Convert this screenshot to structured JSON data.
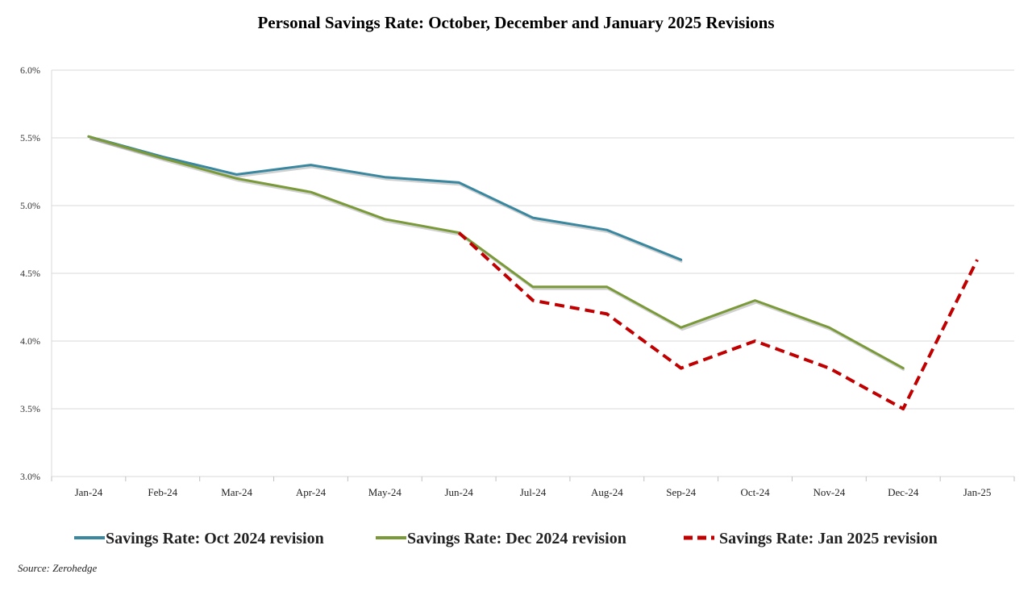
{
  "chart_data": {
    "type": "line",
    "title": "Personal Savings Rate: October, December and January 2025 Revisions",
    "categories": [
      "Jan-24",
      "Feb-24",
      "Mar-24",
      "Apr-24",
      "May-24",
      "Jun-24",
      "Jul-24",
      "Aug-24",
      "Sep-24",
      "Oct-24",
      "Nov-24",
      "Dec-24",
      "Jan-25"
    ],
    "yticks": [
      "3.0%",
      "3.5%",
      "4.0%",
      "4.5%",
      "5.0%",
      "5.5%",
      "6.0%"
    ],
    "ylim": [
      3.0,
      6.0
    ],
    "grid": true,
    "legend_position": "bottom",
    "series": [
      {
        "name": "Savings Rate: Oct 2024 revision",
        "color": "#3a87a0",
        "dash": "solid",
        "values": [
          5.51,
          5.36,
          5.23,
          5.3,
          5.21,
          5.17,
          4.91,
          4.82,
          4.6,
          null,
          null,
          null,
          null
        ]
      },
      {
        "name": "Savings Rate: Dec 2024 revision",
        "color": "#7a9a3a",
        "dash": "solid",
        "values": [
          5.51,
          5.35,
          5.2,
          5.1,
          4.9,
          4.8,
          4.4,
          4.4,
          4.1,
          4.3,
          4.1,
          3.8,
          null
        ]
      },
      {
        "name": "Savings Rate: Jan 2025 revision",
        "color": "#c00000",
        "dash": "dashed",
        "values": [
          null,
          null,
          null,
          null,
          null,
          4.8,
          4.3,
          4.2,
          3.8,
          4.0,
          3.8,
          3.5,
          4.6
        ]
      }
    ]
  },
  "source_text": "Source: Zerohedge"
}
